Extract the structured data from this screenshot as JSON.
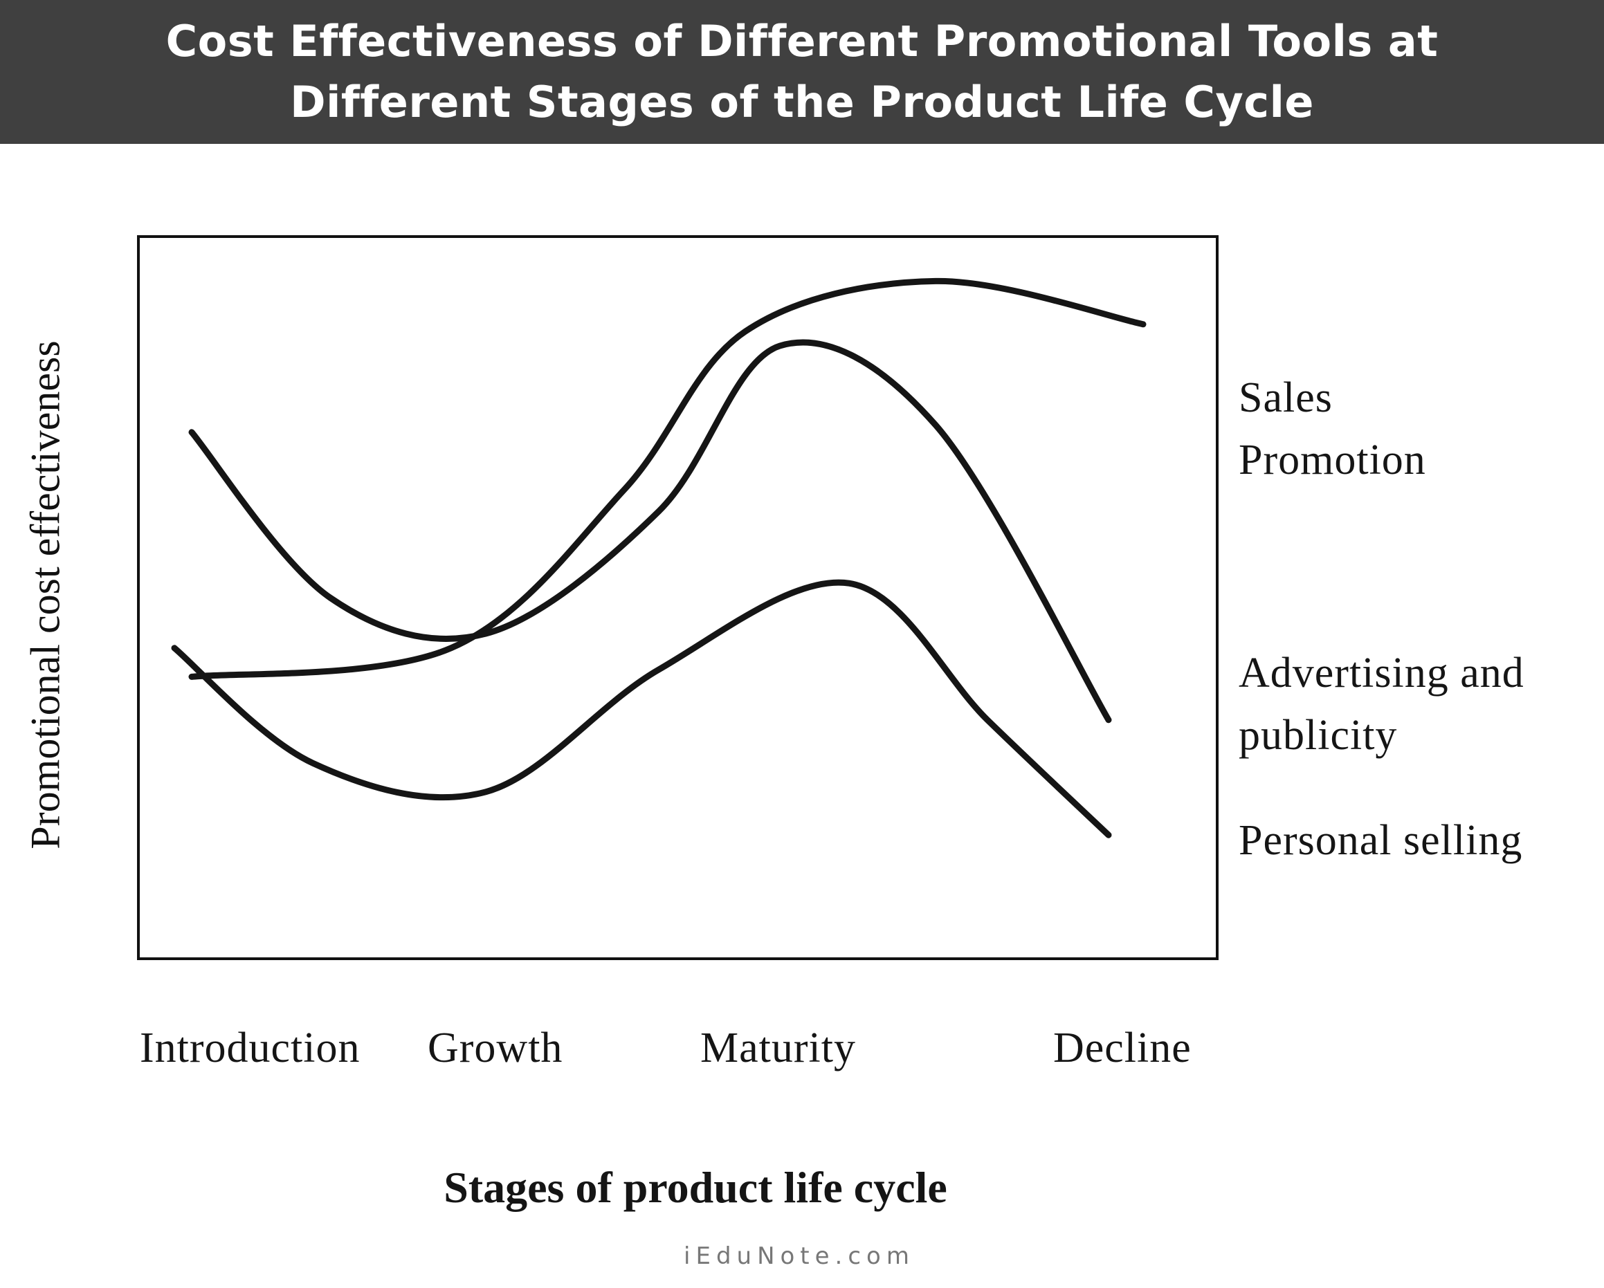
{
  "header": {
    "title_line1": "Cost Effectiveness of Different Promotional Tools at",
    "title_line2": "Different Stages of the Product Life Cycle",
    "background": "#404040",
    "text_color": "#ffffff"
  },
  "watermark": "iEduNote.com",
  "chart_data": {
    "type": "line",
    "title": "Cost Effectiveness of Different Promotional Tools at Different Stages of the Product Life Cycle",
    "xlabel": "Stages of product life cycle",
    "ylabel": "Promotional cost effectiveness",
    "categories": [
      "Introduction",
      "Growth",
      "Maturity",
      "Decline"
    ],
    "grid": false,
    "legend": "right",
    "line_color": "#151515",
    "series": [
      {
        "name": "Sales Promotion",
        "label_lines": [
          "Sales",
          "Promotion"
        ],
        "points": [
          [
            0.15,
            0.39
          ],
          [
            0.9,
            0.43
          ],
          [
            1.4,
            0.65
          ],
          [
            1.75,
            0.87
          ],
          [
            2.3,
            0.94
          ],
          [
            2.9,
            0.88
          ]
        ]
      },
      {
        "name": "Advertising and publicity",
        "label_lines": [
          "Advertising and",
          "publicity"
        ],
        "points": [
          [
            0.15,
            0.73
          ],
          [
            0.55,
            0.5
          ],
          [
            1.0,
            0.45
          ],
          [
            1.5,
            0.62
          ],
          [
            1.85,
            0.85
          ],
          [
            2.3,
            0.74
          ],
          [
            2.8,
            0.33
          ]
        ]
      },
      {
        "name": "Personal selling",
        "label_lines": [
          "Personal selling"
        ],
        "points": [
          [
            0.1,
            0.43
          ],
          [
            0.5,
            0.27
          ],
          [
            1.0,
            0.23
          ],
          [
            1.5,
            0.4
          ],
          [
            2.05,
            0.52
          ],
          [
            2.45,
            0.33
          ],
          [
            2.8,
            0.17
          ]
        ]
      }
    ]
  }
}
